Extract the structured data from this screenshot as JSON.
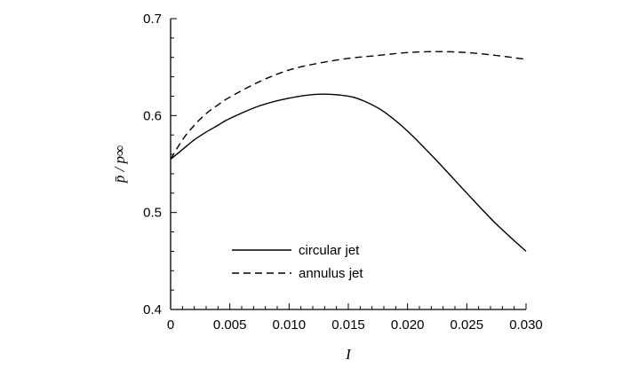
{
  "chart_data": {
    "type": "line",
    "title": "",
    "xlabel": "I",
    "ylabel": "p̄ / p∞",
    "xlim": [
      0,
      0.03
    ],
    "ylim": [
      0.4,
      0.7
    ],
    "xticks": [
      0,
      0.005,
      0.01,
      0.015,
      0.02,
      0.025,
      0.03
    ],
    "xtick_labels": [
      "0",
      "0.005",
      "0.010",
      "0.015",
      "0.020",
      "0.025",
      "0.030"
    ],
    "yticks": [
      0.4,
      0.5,
      0.6,
      0.7
    ],
    "ytick_labels": [
      "0.4",
      "0.5",
      "0.6",
      "0.7"
    ],
    "grid": false,
    "legend_position": "bottom-left",
    "series": [
      {
        "name": "circular jet",
        "style": "solid",
        "x": [
          0,
          0.001,
          0.002,
          0.003,
          0.004,
          0.005,
          0.0075,
          0.01,
          0.0125,
          0.015,
          0.0165,
          0.018,
          0.02,
          0.0225,
          0.025,
          0.0275,
          0.03
        ],
        "y": [
          0.555,
          0.565,
          0.575,
          0.583,
          0.59,
          0.597,
          0.61,
          0.618,
          0.622,
          0.62,
          0.614,
          0.604,
          0.584,
          0.553,
          0.52,
          0.488,
          0.46
        ]
      },
      {
        "name": "annulus jet",
        "style": "dashed",
        "x": [
          0,
          0.001,
          0.002,
          0.003,
          0.004,
          0.005,
          0.0075,
          0.01,
          0.0125,
          0.015,
          0.0175,
          0.02,
          0.0225,
          0.025,
          0.0275,
          0.03
        ],
        "y": [
          0.555,
          0.575,
          0.59,
          0.602,
          0.611,
          0.619,
          0.635,
          0.647,
          0.654,
          0.659,
          0.662,
          0.665,
          0.666,
          0.665,
          0.662,
          0.658
        ]
      }
    ]
  }
}
